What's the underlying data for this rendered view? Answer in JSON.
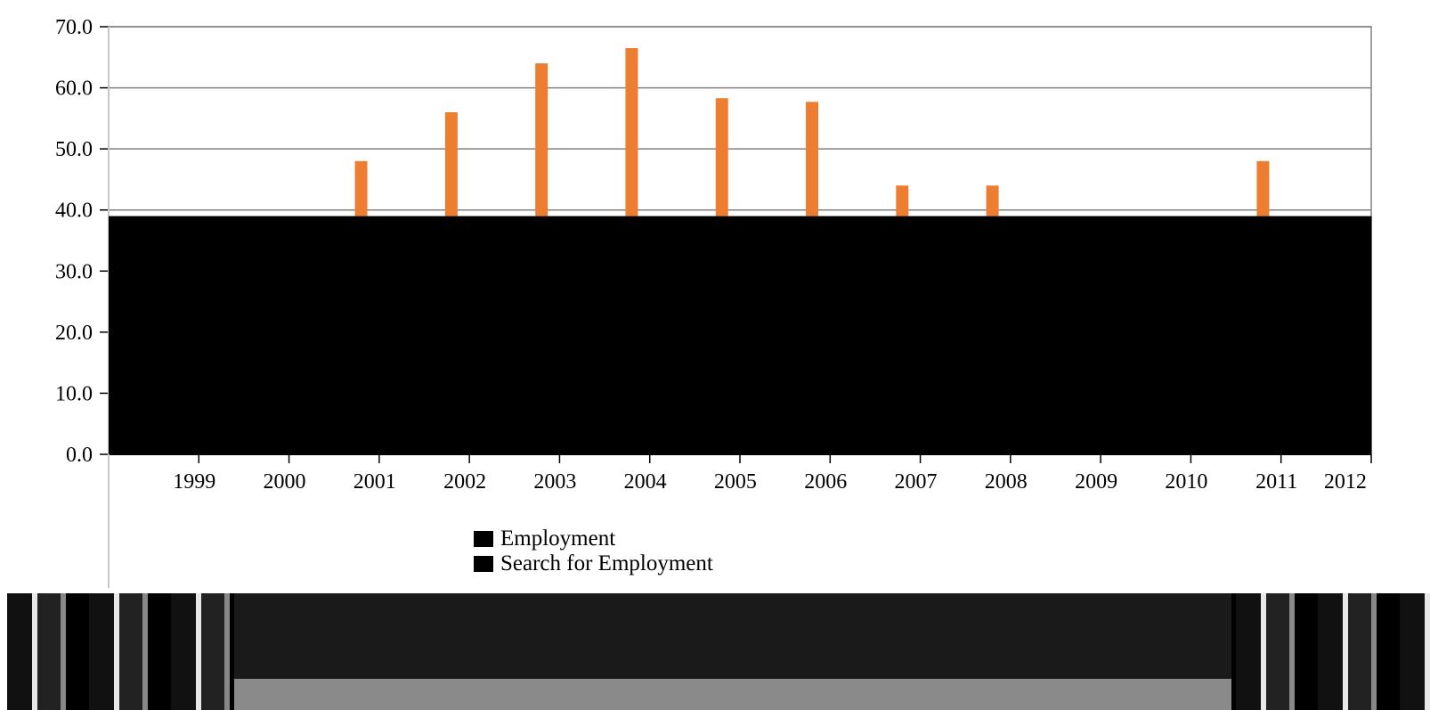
{
  "chart_data": {
    "type": "bar",
    "categories": [
      "1999",
      "2000",
      "2001",
      "2002",
      "2003",
      "2004",
      "2005",
      "2006",
      "2007",
      "2008",
      "2009",
      "2010",
      "2011",
      "2012"
    ],
    "series": [
      {
        "name": "Employment",
        "values": [
          39,
          39,
          39,
          39,
          39,
          39,
          39,
          39,
          39,
          39,
          39,
          39,
          39,
          39
        ],
        "color": "#000000"
      },
      {
        "name": "Search for Employment",
        "values": [
          0,
          0,
          48,
          56,
          64,
          66.5,
          58.3,
          57.7,
          44,
          44,
          0,
          0,
          48,
          0
        ],
        "color": "#ed7d31"
      }
    ],
    "yticks": [
      "0.0",
      "10.0",
      "20.0",
      "30.0",
      "40.0",
      "50.0",
      "60.0",
      "70.0"
    ],
    "ylim": [
      0,
      70
    ],
    "grid": true,
    "legend_position": "bottom",
    "legend": [
      "Employment",
      "Search for Employment"
    ],
    "colors": {
      "gridline": "#808080",
      "axis": "#000000"
    }
  }
}
